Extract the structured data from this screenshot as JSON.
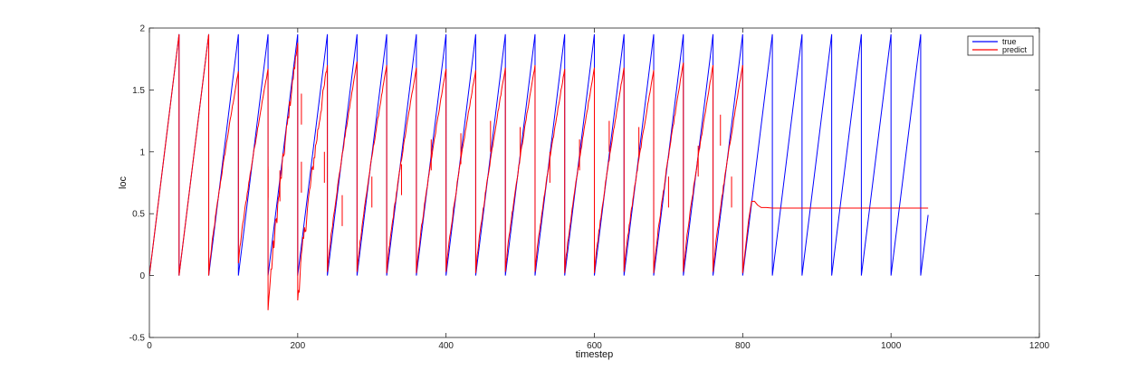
{
  "chart_data": {
    "type": "line",
    "title": "",
    "xlabel": "timestep",
    "ylabel": "loc",
    "xlim": [
      0,
      1200
    ],
    "ylim": [
      -0.5,
      2
    ],
    "xticks": [
      0,
      200,
      400,
      600,
      800,
      1000,
      1200
    ],
    "yticks": [
      -0.5,
      0,
      0.5,
      1,
      1.5,
      2
    ],
    "xtick_labels": [
      "0",
      "200",
      "400",
      "600",
      "800",
      "1000",
      "1200"
    ],
    "ytick_labels": [
      "-0.5",
      "0",
      "0.5",
      "1",
      "1.5",
      "2"
    ],
    "grid": false,
    "legend_position": "top-right",
    "series": [
      {
        "name": "true",
        "color": "#0000ff",
        "period": 40,
        "length": 1050,
        "min": 0,
        "max": 1.95,
        "x": [
          0,
          40,
          40,
          80,
          80,
          120,
          120,
          160,
          160,
          200,
          200,
          240,
          240,
          280,
          280,
          320,
          320,
          360,
          360,
          400,
          400,
          440,
          440,
          480,
          480,
          520,
          520,
          560,
          560,
          600,
          600,
          640,
          640,
          680,
          680,
          720,
          720,
          760,
          760,
          800,
          800,
          840,
          840,
          880,
          880,
          920,
          920,
          960,
          960,
          1000,
          1000,
          1040,
          1040,
          1050
        ],
        "y": [
          0,
          1.95,
          0,
          1.95,
          0,
          1.95,
          0,
          1.95,
          0,
          1.95,
          0,
          1.95,
          0,
          1.95,
          0,
          1.95,
          0,
          1.95,
          0,
          1.95,
          0,
          1.95,
          0,
          1.95,
          0,
          1.95,
          0,
          1.95,
          0,
          1.95,
          0,
          1.95,
          0,
          1.95,
          0,
          1.95,
          0,
          1.95,
          0,
          1.95,
          0,
          1.95,
          0,
          1.95,
          0,
          1.95,
          0,
          1.95,
          0,
          1.95,
          0,
          1.95,
          0,
          0.49
        ]
      },
      {
        "name": "predict",
        "color": "#ff0000",
        "cycle_peaks": [
          1.95,
          1.95,
          1.65,
          1.67,
          1.88,
          1.7,
          1.73,
          1.7,
          1.68,
          1.67,
          1.66,
          1.68,
          1.7,
          1.67,
          1.68,
          1.68,
          1.66,
          1.72,
          1.7,
          1.7
        ],
        "cycle_troughs": [
          0,
          0,
          0,
          0.1,
          -0.28,
          -0.2,
          0.03,
          0.03,
          0.02,
          0.02,
          0.03,
          0.02,
          0.03,
          0.03,
          0.02,
          0.02,
          0.03,
          0.02,
          0.03,
          0.03
        ],
        "spikes": [
          [
            160,
            0.88
          ],
          [
            160,
            0.86
          ],
          [
            176,
            0.85
          ],
          [
            205,
            1.47
          ],
          [
            205,
            0.92
          ],
          [
            236,
            1.0
          ],
          [
            260,
            0.65
          ],
          [
            300,
            0.8
          ],
          [
            340,
            0.9
          ],
          [
            380,
            1.1
          ],
          [
            420,
            1.15
          ],
          [
            460,
            1.25
          ],
          [
            500,
            1.2
          ],
          [
            540,
            1.0
          ],
          [
            580,
            1.1
          ],
          [
            620,
            1.25
          ],
          [
            660,
            1.2
          ],
          [
            700,
            0.8
          ],
          [
            740,
            1.05
          ],
          [
            770,
            1.3
          ],
          [
            785,
            0.8
          ]
        ],
        "steady_x": [
          800,
          808,
          812,
          816,
          820,
          825,
          832,
          840,
          900,
          1000,
          1050
        ],
        "steady_y": [
          0.02,
          0.45,
          0.6,
          0.6,
          0.57,
          0.55,
          0.55,
          0.545,
          0.545,
          0.545,
          0.545
        ]
      }
    ]
  }
}
